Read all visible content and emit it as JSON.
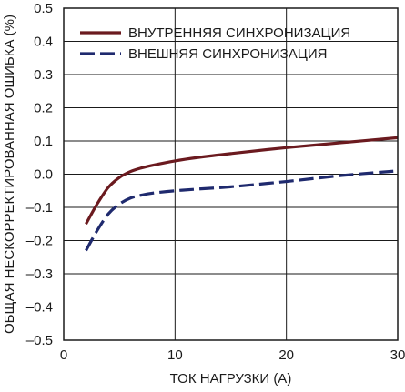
{
  "chart_data": {
    "type": "line",
    "xlabel": "ТОК НАГРУЗКИ (A)",
    "ylabel": "ОБЩАЯ НЕСКОРРЕКТИРОВАННАЯ ОШИБКА (%)",
    "xlim": [
      0,
      30
    ],
    "ylim": [
      -0.5,
      0.5
    ],
    "xticks": [
      0,
      10,
      20,
      30
    ],
    "yticks": [
      -0.5,
      -0.4,
      -0.3,
      -0.2,
      -0.1,
      0.0,
      0.1,
      0.2,
      0.3,
      0.4,
      0.5
    ],
    "xtick_labels": [
      "0",
      "10",
      "20",
      "30"
    ],
    "ytick_labels": [
      "–0.5",
      "–0.4",
      "–0.3",
      "–0.2",
      "–0.1",
      "0.0",
      "0.1",
      "0.2",
      "0.3",
      "0.4",
      "0.5"
    ],
    "grid": true,
    "legend_position": "top-left",
    "series": [
      {
        "name": "ВНУТРЕННЯЯ СИНХРОНИЗАЦИЯ",
        "color": "#6b1a1f",
        "style": "solid",
        "x": [
          2,
          3,
          4,
          5,
          6,
          7,
          8,
          10,
          12,
          15,
          20,
          25,
          30
        ],
        "y": [
          -0.15,
          -0.09,
          -0.04,
          -0.01,
          0.008,
          0.019,
          0.027,
          0.04,
          0.05,
          0.062,
          0.08,
          0.095,
          0.11
        ]
      },
      {
        "name": "ВНЕШНЯЯ СИНХРОНИЗАЦИЯ",
        "color": "#1f2a6e",
        "style": "dashed",
        "x": [
          2,
          3,
          4,
          5,
          6,
          7,
          8,
          10,
          12,
          15,
          20,
          25,
          30
        ],
        "y": [
          -0.23,
          -0.17,
          -0.12,
          -0.09,
          -0.072,
          -0.063,
          -0.057,
          -0.05,
          -0.045,
          -0.038,
          -0.022,
          -0.004,
          0.01
        ]
      }
    ]
  }
}
